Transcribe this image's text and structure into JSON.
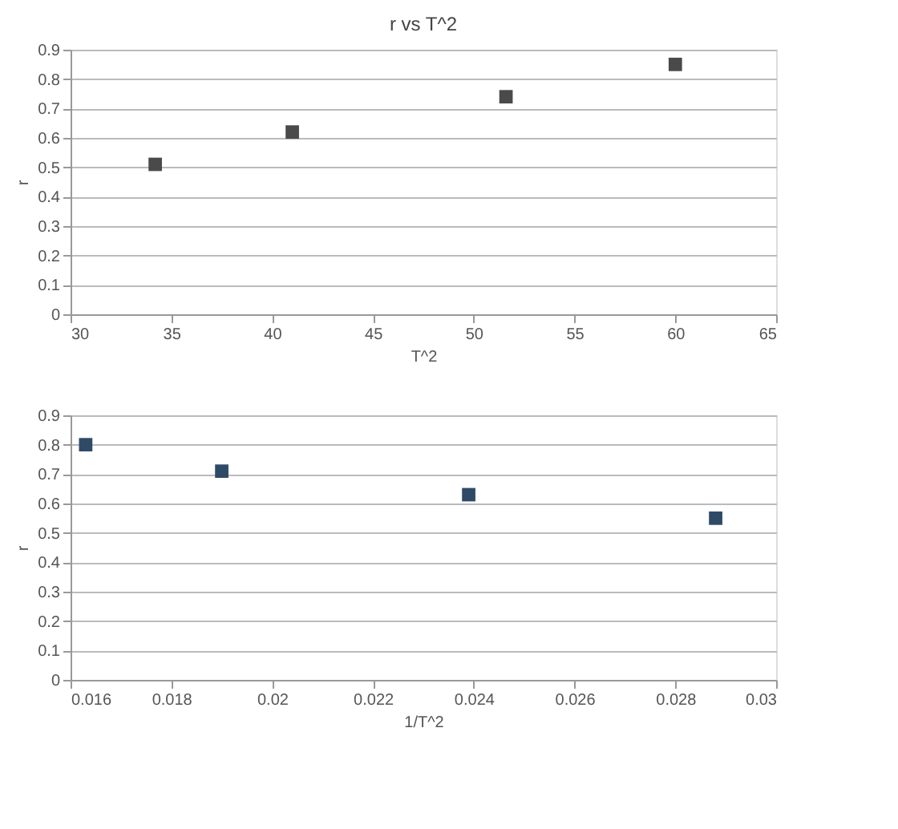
{
  "chart_data": [
    {
      "type": "scatter",
      "title": "r vs T^2",
      "xlabel": "T^2",
      "ylabel": "r",
      "x": [
        34.2,
        41,
        51.6,
        60
      ],
      "values": [
        0.51,
        0.62,
        0.74,
        0.85
      ],
      "color": "#4a4a4a",
      "xlim": [
        30,
        65
      ],
      "xticks": [
        30,
        35,
        40,
        45,
        50,
        55,
        60,
        65
      ],
      "ylim": [
        0,
        0.9
      ],
      "yticks": [
        0,
        0.1,
        0.2,
        0.3,
        0.4,
        0.5,
        0.6,
        0.7,
        0.8,
        0.9
      ],
      "grid": "y",
      "marker": "square"
    },
    {
      "type": "scatter",
      "xlabel": "1/T^2",
      "ylabel": "r",
      "x": [
        0.0163,
        0.019,
        0.0239,
        0.0288
      ],
      "values": [
        0.8,
        0.71,
        0.63,
        0.55
      ],
      "color": "#2f4a66",
      "xlim": [
        0.016,
        0.03
      ],
      "xticks": [
        0.016,
        0.018,
        0.02,
        0.022,
        0.024,
        0.026,
        0.028,
        0.03
      ],
      "ylim": [
        0,
        0.9
      ],
      "yticks": [
        0,
        0.1,
        0.2,
        0.3,
        0.4,
        0.5,
        0.6,
        0.7,
        0.8,
        0.9
      ],
      "grid": "y",
      "marker": "square"
    }
  ]
}
